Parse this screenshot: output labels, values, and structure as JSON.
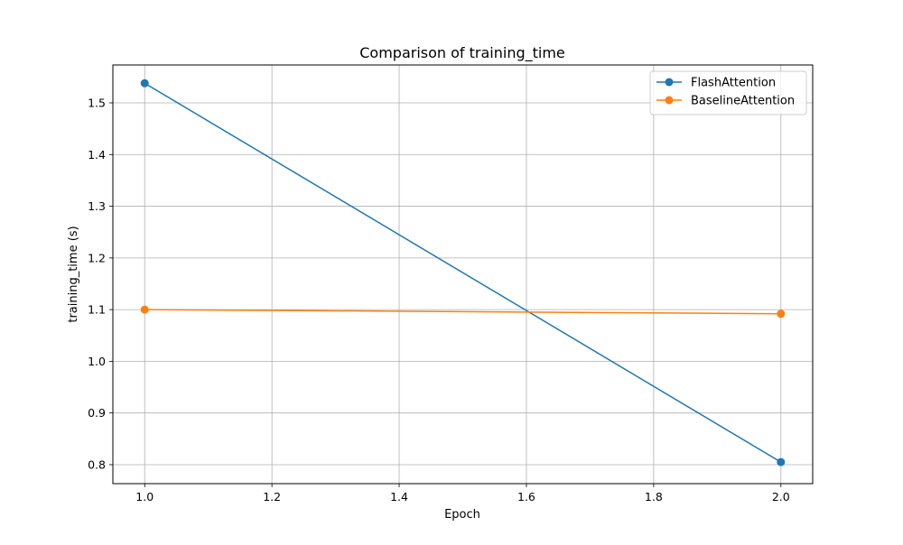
{
  "chart_data": {
    "type": "line",
    "title": "Comparison of training_time",
    "xlabel": "Epoch",
    "ylabel": "training_time (s)",
    "xlim": [
      0.95,
      2.05
    ],
    "ylim": [
      0.7633,
      1.5733
    ],
    "xticks": [
      1.0,
      1.2,
      1.4,
      1.6,
      1.8,
      2.0
    ],
    "xtick_labels": [
      "1.0",
      "1.2",
      "1.4",
      "1.6",
      "1.8",
      "2.0"
    ],
    "yticks": [
      0.8,
      0.9,
      1.0,
      1.1,
      1.2,
      1.3,
      1.4,
      1.5
    ],
    "ytick_labels": [
      "0.8",
      "0.9",
      "1.0",
      "1.1",
      "1.2",
      "1.3",
      "1.4",
      "1.5"
    ],
    "grid": true,
    "legend_position": "top-right",
    "x": [
      1.0,
      2.0
    ],
    "series": [
      {
        "name": "FlashAttention",
        "values": [
          1.538,
          0.805
        ],
        "color": "#1f77b4"
      },
      {
        "name": "BaselineAttention",
        "values": [
          1.1,
          1.092
        ],
        "color": "#ff7f0e"
      }
    ]
  }
}
